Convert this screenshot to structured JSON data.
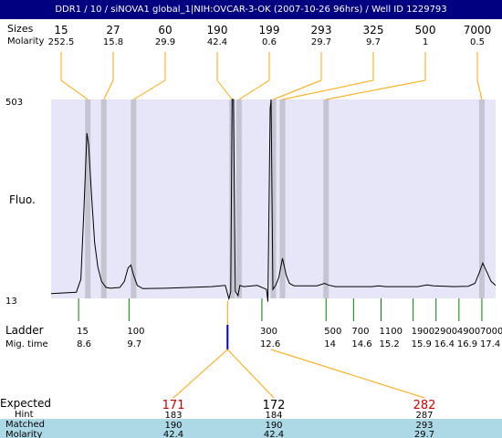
{
  "title": "DDR1 / 10 / siNOVA1 global_1|NIH:OVCAR-3-OK (2007-10-26 96hrs) / Well ID 1229793",
  "labels": {
    "sizes_row": "Sizes",
    "molarity_row": "Molarity",
    "fluo": "Fluo.",
    "ladder": "Ladder",
    "mig_time": "Mig. time",
    "expected": "Expected",
    "hint": "Hint",
    "matched": "Matched",
    "molarity": "Molarity"
  },
  "colors": {
    "title_bg": "#000080",
    "plot_bg": "#e6e6f8",
    "band": "#c4c4d2",
    "connector": "#ffa500",
    "ladder_tick": "#008000",
    "marker_blue": "#0000c8",
    "expected_red": "#d00000",
    "matched_bg": "#add8e6"
  },
  "chart_data": {
    "type": "line",
    "xlabel": "",
    "ylabel": "Fluo.",
    "ylim": [
      13,
      503
    ],
    "ytick_labels": [
      "503",
      "13"
    ],
    "peaks": [
      {
        "size": "15",
        "molarity": "252.5",
        "x": 8.8
      },
      {
        "size": "27",
        "molarity": "15.8",
        "x": 9.15
      },
      {
        "size": "60",
        "molarity": "29.9",
        "x": 9.8
      },
      {
        "size": "190",
        "molarity": "42.4",
        "x": 11.95
      },
      {
        "size": "199",
        "molarity": "0.6",
        "x": 12.1
      },
      {
        "size": "293",
        "molarity": "29.7",
        "x": 12.85
      },
      {
        "size": "325",
        "molarity": "9.7",
        "x": 13.05
      },
      {
        "size": "500",
        "molarity": "1",
        "x": 14.0
      },
      {
        "size": "7000",
        "molarity": "0.5",
        "x": 17.4
      }
    ],
    "ladder": [
      {
        "size": "15",
        "mig_time": "8.6"
      },
      {
        "size": "100",
        "mig_time": "9.7"
      },
      {
        "size": "300",
        "mig_time": "12.6"
      },
      {
        "size": "500",
        "mig_time": "14"
      },
      {
        "size": "700",
        "mig_time": "14.6"
      },
      {
        "size": "1100",
        "mig_time": "15.2"
      },
      {
        "size": "1900",
        "mig_time": "15.9"
      },
      {
        "size": "2900",
        "mig_time": "16.4"
      },
      {
        "size": "4900",
        "mig_time": "16.9"
      },
      {
        "size": "7000",
        "mig_time": "17.4"
      }
    ],
    "trace": [
      [
        8.0,
        25
      ],
      [
        8.55,
        28
      ],
      [
        8.65,
        60
      ],
      [
        8.72,
        240
      ],
      [
        8.78,
        420
      ],
      [
        8.82,
        390
      ],
      [
        8.88,
        270
      ],
      [
        8.95,
        150
      ],
      [
        9.02,
        90
      ],
      [
        9.1,
        55
      ],
      [
        9.2,
        40
      ],
      [
        9.3,
        38
      ],
      [
        9.5,
        40
      ],
      [
        9.6,
        55
      ],
      [
        9.68,
        88
      ],
      [
        9.74,
        95
      ],
      [
        9.8,
        70
      ],
      [
        9.88,
        45
      ],
      [
        10.0,
        37
      ],
      [
        10.5,
        38
      ],
      [
        11.0,
        40
      ],
      [
        11.5,
        42
      ],
      [
        11.8,
        45
      ],
      [
        11.88,
        12
      ],
      [
        11.92,
        30
      ],
      [
        11.95,
        503
      ],
      [
        11.98,
        503
      ],
      [
        12.02,
        30
      ],
      [
        12.08,
        20
      ],
      [
        12.12,
        45
      ],
      [
        12.2,
        42
      ],
      [
        12.5,
        45
      ],
      [
        12.7,
        35
      ],
      [
        12.73,
        5
      ],
      [
        12.78,
        480
      ],
      [
        12.8,
        503
      ],
      [
        12.84,
        35
      ],
      [
        12.9,
        45
      ],
      [
        12.97,
        65
      ],
      [
        13.05,
        112
      ],
      [
        13.13,
        70
      ],
      [
        13.2,
        50
      ],
      [
        13.3,
        44
      ],
      [
        13.8,
        44
      ],
      [
        13.97,
        50
      ],
      [
        14.05,
        46
      ],
      [
        14.2,
        42
      ],
      [
        15.0,
        42
      ],
      [
        15.15,
        44
      ],
      [
        15.3,
        42
      ],
      [
        16.0,
        42
      ],
      [
        16.2,
        46
      ],
      [
        16.35,
        44
      ],
      [
        16.8,
        42
      ],
      [
        17.1,
        43
      ],
      [
        17.25,
        50
      ],
      [
        17.35,
        78
      ],
      [
        17.42,
        100
      ],
      [
        17.5,
        80
      ],
      [
        17.6,
        55
      ],
      [
        17.7,
        45
      ]
    ],
    "cursor_mig_time": 11.85,
    "expected": [
      {
        "name": "171",
        "hint": "183",
        "matched": "190",
        "molarity": "42.4",
        "from_x": 11.85
      },
      {
        "name": "172",
        "hint": "184",
        "matched": "190",
        "molarity": "42.4",
        "from_x": 11.85
      },
      {
        "name": "282",
        "hint": "287",
        "matched": "293",
        "molarity": "29.7",
        "from_x": 12.8
      }
    ]
  }
}
